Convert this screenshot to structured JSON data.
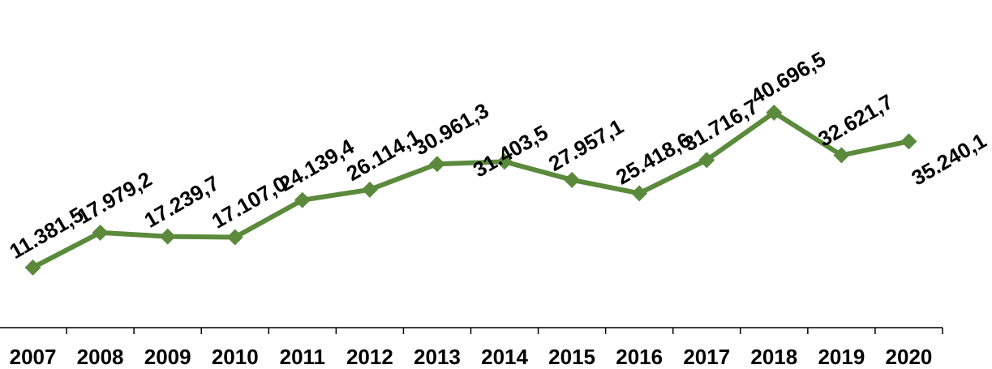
{
  "chart_data": {
    "type": "line",
    "categories": [
      "2007",
      "2008",
      "2009",
      "2010",
      "2011",
      "2012",
      "2013",
      "2014",
      "2015",
      "2016",
      "2017",
      "2018",
      "2019",
      "2020"
    ],
    "values": [
      11381.5,
      17979.2,
      17239.7,
      17107.0,
      24139.4,
      26114.1,
      30961.3,
      31403.5,
      27957.1,
      25418.6,
      31716.7,
      40696.5,
      32621.7,
      35240.1
    ],
    "value_labels": [
      "11.381,5",
      "17.979,2",
      "17.239,7",
      "17.107,0",
      "24.139,4",
      "26.114,1",
      "30.961,3",
      "31.403,5",
      "27.957,1",
      "25.418,6",
      "31.716,7",
      "40.696,5",
      "32.621,7",
      "35.240,1"
    ],
    "color": "#5b8a3c",
    "ylim": [
      0,
      62000
    ]
  }
}
